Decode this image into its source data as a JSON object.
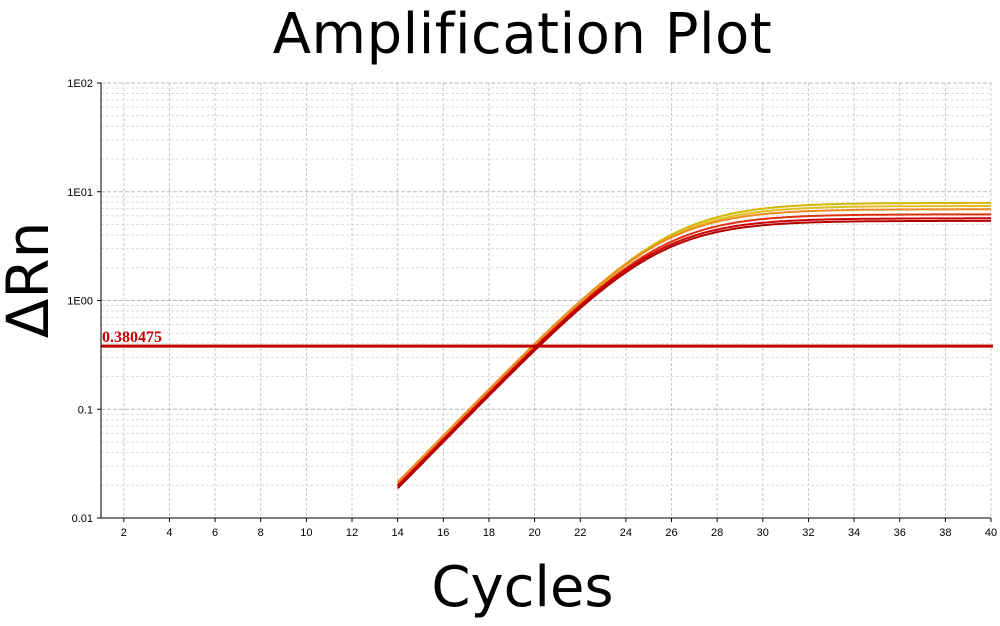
{
  "chart_data": {
    "type": "line",
    "title": "Amplification Plot",
    "xlabel": "Cycles",
    "ylabel": "ΔRn",
    "xlim": [
      1,
      40
    ],
    "ylim": [
      0.01,
      100
    ],
    "y_scale": "log",
    "grid": true,
    "x_ticks": [
      2,
      4,
      6,
      8,
      10,
      12,
      14,
      16,
      18,
      20,
      22,
      24,
      26,
      28,
      30,
      32,
      34,
      36,
      38,
      40
    ],
    "y_ticks": [
      {
        "value": 0.01,
        "label": "0.01"
      },
      {
        "value": 0.1,
        "label": "0.1"
      },
      {
        "value": 1,
        "label": "1E00"
      },
      {
        "value": 10,
        "label": "1E01"
      },
      {
        "value": 100,
        "label": "1E02"
      }
    ],
    "threshold": {
      "value": 0.380475,
      "label": "0.380475",
      "color": "#c00000"
    },
    "series": [
      {
        "color": "#d4b800",
        "plateau": 7.9,
        "ct": 19.95
      },
      {
        "color": "#e0c020",
        "plateau": 7.4,
        "ct": 20.0
      },
      {
        "color": "#f08a20",
        "plateau": 6.9,
        "ct": 19.9
      },
      {
        "color": "#e03010",
        "plateau": 6.2,
        "ct": 20.05
      },
      {
        "color": "#cc0000",
        "plateau": 5.7,
        "ct": 20.1
      },
      {
        "color": "#b00000",
        "plateau": 5.4,
        "ct": 20.2
      }
    ]
  }
}
